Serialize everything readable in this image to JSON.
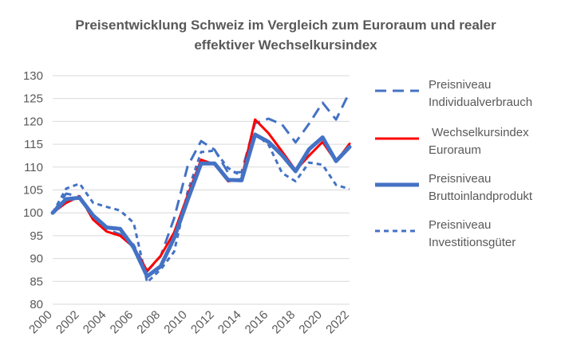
{
  "chart_data": {
    "type": "line",
    "title": [
      "Preisentwicklung Schweiz im Vergleich zum Euroraum und realer",
      "effektiver Wechselkursindex"
    ],
    "xlabel": "",
    "ylabel": "",
    "ylim": [
      80,
      130
    ],
    "yticks": [
      80,
      85,
      90,
      95,
      100,
      105,
      110,
      115,
      120,
      125,
      130
    ],
    "x": [
      2000,
      2001,
      2002,
      2003,
      2004,
      2005,
      2006,
      2007,
      2008,
      2009,
      2010,
      2011,
      2012,
      2013,
      2014,
      2015,
      2016,
      2017,
      2018,
      2019,
      2020,
      2021,
      2022
    ],
    "xtick_labels": [
      "2000",
      "2002",
      "2004",
      "2006",
      "2008",
      "2010",
      "2012",
      "2014",
      "2016",
      "2018",
      "2020",
      "2022"
    ],
    "grid": "horizontal",
    "legend_position": "right",
    "series": [
      {
        "name": [
          "Preisniveau",
          "Individualverbrauch"
        ],
        "color": "#4472C4",
        "style": "long-dash",
        "values": [
          100,
          104.2,
          103.6,
          98.5,
          96.4,
          95.3,
          93,
          87.2,
          90.5,
          98.8,
          110.2,
          115.7,
          113.8,
          108.8,
          108.9,
          119.6,
          120.6,
          119.3,
          115.4,
          119.5,
          124.1,
          120.4,
          126.4
        ]
      },
      {
        "name": [
          " Wechselkursindex",
          "Euroraum"
        ],
        "color": "#FF0000",
        "style": "solid-thin",
        "values": [
          100,
          102.2,
          103.6,
          98.5,
          95.9,
          95,
          92.5,
          87.3,
          90.6,
          95.7,
          103.8,
          111.6,
          110.6,
          106.9,
          107.4,
          120.4,
          117.4,
          113.4,
          109.3,
          112.5,
          115.5,
          111.2,
          115.1
        ]
      },
      {
        "name": [
          "Preisniveau",
          "Bruttoinlandprodukt"
        ],
        "color": "#4472C4",
        "style": "solid-thick",
        "values": [
          100,
          103,
          103.3,
          99.4,
          96.8,
          96.5,
          92.4,
          86.1,
          88.3,
          94.5,
          102.8,
          110.8,
          110.8,
          107.2,
          107.1,
          117.1,
          115.5,
          112.6,
          109.1,
          113.9,
          116.5,
          111.3,
          114.4
        ]
      },
      {
        "name": [
          "Preisniveau",
          "Investitionsgüter"
        ],
        "color": "#4472C4",
        "style": "short-dash",
        "values": [
          100,
          105.3,
          106.4,
          102.2,
          101.3,
          100.5,
          97.8,
          84.8,
          87.6,
          91.5,
          104.6,
          113.3,
          113.6,
          109.8,
          108,
          117.3,
          114.9,
          108.7,
          106.9,
          111,
          110.5,
          106.1,
          105.2
        ]
      }
    ]
  }
}
